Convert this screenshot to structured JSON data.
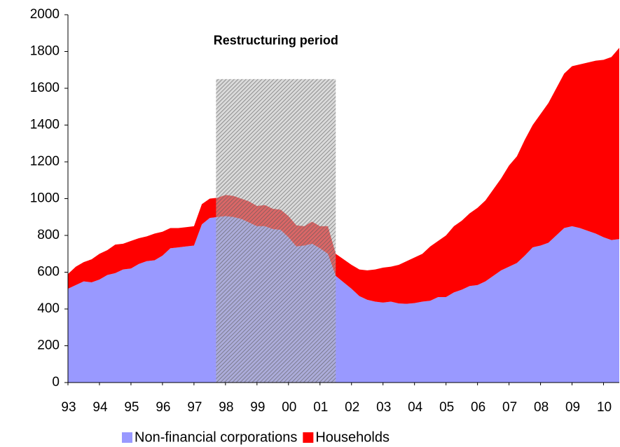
{
  "chart_data": {
    "type": "stacked_area",
    "annotation": {
      "label": "Restructuring period",
      "x": [
        1997.7,
        2001.5
      ],
      "y": 1650
    },
    "x": [
      1993,
      1993.25,
      1993.5,
      1993.75,
      1994,
      1994.25,
      1994.5,
      1994.75,
      1995,
      1995.25,
      1995.5,
      1995.75,
      1996,
      1996.25,
      1996.5,
      1996.75,
      1997,
      1997.25,
      1997.5,
      1997.75,
      1998,
      1998.25,
      1998.5,
      1998.75,
      1999,
      1999.25,
      1999.5,
      1999.75,
      2000,
      2000.25,
      2000.5,
      2000.75,
      2001,
      2001.25,
      2001.5,
      2001.75,
      2002,
      2002.25,
      2002.5,
      2002.75,
      2003,
      2003.25,
      2003.5,
      2003.75,
      2004,
      2004.25,
      2004.5,
      2004.75,
      2005,
      2005.25,
      2005.5,
      2005.75,
      2006,
      2006.25,
      2006.5,
      2006.75,
      2007,
      2007.25,
      2007.5,
      2007.75,
      2008,
      2008.25,
      2008.5,
      2008.75,
      2009,
      2009.25,
      2009.5,
      2009.75,
      2010,
      2010.25,
      2010.5
    ],
    "series": [
      {
        "name": "Non-financial corporations",
        "color": "#9999ff",
        "values": [
          510,
          530,
          550,
          545,
          560,
          585,
          595,
          615,
          620,
          645,
          660,
          665,
          690,
          730,
          735,
          740,
          745,
          860,
          895,
          900,
          905,
          900,
          890,
          870,
          850,
          850,
          835,
          830,
          790,
          740,
          745,
          755,
          730,
          700,
          580,
          545,
          510,
          470,
          450,
          440,
          435,
          440,
          430,
          428,
          432,
          440,
          445,
          465,
          465,
          490,
          505,
          525,
          530,
          550,
          580,
          610,
          630,
          650,
          690,
          735,
          745,
          760,
          800,
          840,
          850,
          840,
          825,
          810,
          790,
          775,
          780
        ]
      },
      {
        "name": "Households",
        "color": "#ff0000",
        "values": [
          80,
          100,
          105,
          125,
          140,
          135,
          155,
          140,
          150,
          140,
          135,
          145,
          130,
          110,
          105,
          105,
          105,
          110,
          105,
          105,
          115,
          115,
          110,
          115,
          110,
          115,
          110,
          110,
          115,
          115,
          105,
          120,
          120,
          150,
          120,
          125,
          130,
          145,
          160,
          175,
          190,
          190,
          210,
          232,
          248,
          260,
          295,
          305,
          335,
          360,
          375,
          395,
          420,
          440,
          470,
          500,
          550,
          580,
          630,
          665,
          715,
          760,
          800,
          840,
          870,
          890,
          915,
          940,
          965,
          995,
          1040
        ]
      }
    ],
    "xlim": [
      1993,
      2010.5
    ],
    "xticks": [
      {
        "value": 1993,
        "label": "93"
      },
      {
        "value": 1994,
        "label": "94"
      },
      {
        "value": 1995,
        "label": "95"
      },
      {
        "value": 1996,
        "label": "96"
      },
      {
        "value": 1997,
        "label": "97"
      },
      {
        "value": 1998,
        "label": "98"
      },
      {
        "value": 1999,
        "label": "99"
      },
      {
        "value": 2000,
        "label": "00"
      },
      {
        "value": 2001,
        "label": "01"
      },
      {
        "value": 2002,
        "label": "02"
      },
      {
        "value": 2003,
        "label": "03"
      },
      {
        "value": 2004,
        "label": "04"
      },
      {
        "value": 2005,
        "label": "05"
      },
      {
        "value": 2006,
        "label": "06"
      },
      {
        "value": 2007,
        "label": "07"
      },
      {
        "value": 2008,
        "label": "08"
      },
      {
        "value": 2009,
        "label": "09"
      },
      {
        "value": 2010,
        "label": "10"
      }
    ],
    "ylim": [
      0,
      2000
    ],
    "yticks": [
      0,
      200,
      400,
      600,
      800,
      1000,
      1200,
      1400,
      1600,
      1800,
      2000
    ],
    "grid": false,
    "legend": "bottom"
  }
}
